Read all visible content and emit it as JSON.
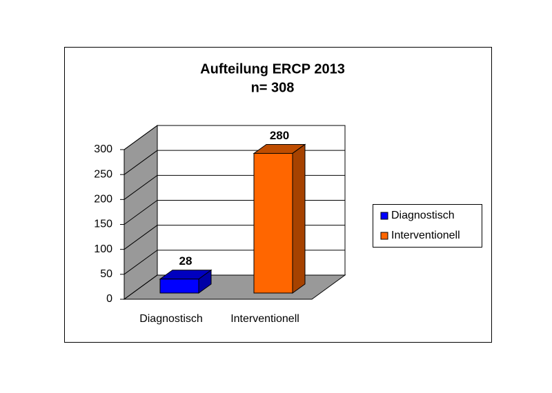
{
  "chart_data": {
    "type": "bar3d",
    "title": "Aufteilung ERCP 2013",
    "subtitle": "n= 308",
    "categories": [
      "Diagnostisch",
      "Interventionell"
    ],
    "series": [
      {
        "name": "Diagnostisch",
        "color": "#0000ff"
      },
      {
        "name": "Interventionell",
        "color": "#ff6600"
      }
    ],
    "values": [
      28,
      280
    ],
    "ylim": [
      0,
      300
    ],
    "yticks": [
      0,
      50,
      100,
      150,
      200,
      250,
      300
    ],
    "grid": true,
    "legend": "right"
  }
}
